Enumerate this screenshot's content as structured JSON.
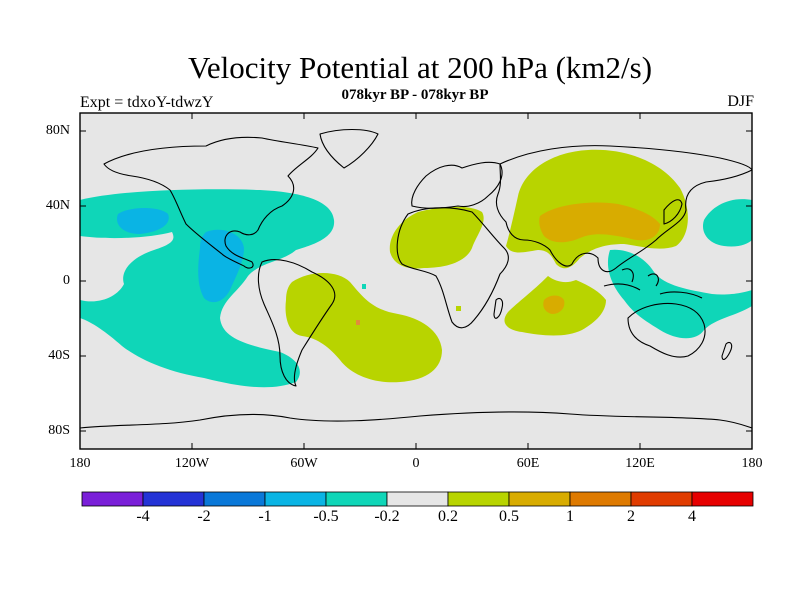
{
  "header": {
    "title": "Velocity Potential at 200 hPa (km2/s)",
    "subtitle": "078kyr BP - 078kyr BP",
    "left_label": "Expt = tdxoY-tdwzY",
    "right_label": "DJF"
  },
  "axes": {
    "lat_labels": [
      "80N",
      "40N",
      "0",
      "40S",
      "80S"
    ],
    "lon_labels": [
      "180",
      "120W",
      "60W",
      "0",
      "60E",
      "120E",
      "180"
    ]
  },
  "colorbar": {
    "labels": [
      "-4",
      "-2",
      "-1",
      "-0.5",
      "-0.2",
      "0.2",
      "0.5",
      "1",
      "2",
      "4"
    ],
    "colors": [
      "#7a1fd8",
      "#2433d6",
      "#0a78d8",
      "#0ab4e4",
      "#0fd6b8",
      "#e6e6e6",
      "#b8d400",
      "#d8ac00",
      "#de7a00",
      "#e03c00",
      "#e60000"
    ]
  },
  "map_colors": {
    "background": "#e6e6e6",
    "neg_weak": "#0fd6b8",
    "neg_mid": "#0ab4e4",
    "pos_weak": "#b8d400",
    "pos_mid": "#d8ac00",
    "pos_strong": "#e08c3c"
  }
}
